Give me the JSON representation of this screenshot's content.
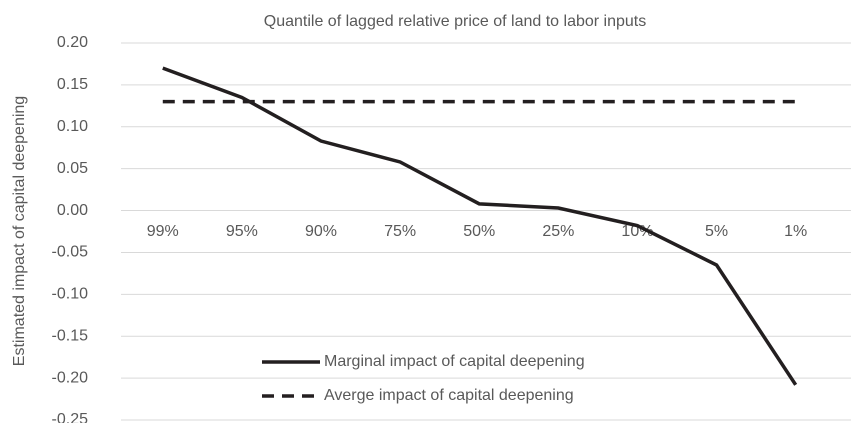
{
  "chart_data": {
    "type": "line",
    "title": "Quantile of lagged relative price of land to labor inputs",
    "y_label": "Estimated impact of capital deepening",
    "categories": [
      "99%",
      "95%",
      "90%",
      "75%",
      "50%",
      "25%",
      "10%",
      "5%",
      "1%"
    ],
    "series": [
      {
        "name": "Marginal impact of capital deepening",
        "color": "#231f20",
        "dash": "solid",
        "values": [
          0.17,
          0.135,
          0.083,
          0.058,
          0.008,
          0.003,
          -0.018,
          -0.065,
          -0.208
        ]
      },
      {
        "name": "Averge impact of capital deepening",
        "color": "#231f20",
        "dash": "dashed",
        "values": [
          0.13,
          0.13,
          0.13,
          0.13,
          0.13,
          0.13,
          0.13,
          0.13,
          0.13
        ]
      }
    ],
    "ylim": [
      -0.25,
      0.2
    ],
    "yticks": [
      {
        "value": -0.25,
        "label": "-0.25"
      },
      {
        "value": -0.2,
        "label": "-0.20"
      },
      {
        "value": -0.15,
        "label": "-0.15"
      },
      {
        "value": -0.1,
        "label": "-0.10"
      },
      {
        "value": -0.05,
        "label": "-0.05"
      },
      {
        "value": 0,
        "label": "0.00"
      },
      {
        "value": 0.05,
        "label": "0.05"
      },
      {
        "value": 0.1,
        "label": "0.10"
      },
      {
        "value": 0.15,
        "label": "0.15"
      },
      {
        "value": 0.2,
        "label": "0.20"
      }
    ],
    "grid": true,
    "legend": "lower center"
  }
}
